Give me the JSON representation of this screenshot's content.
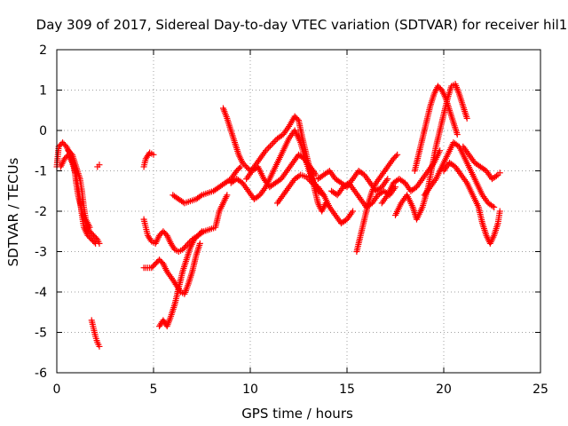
{
  "chart_data": {
    "type": "scatter",
    "title": "Day 309 of 2017, Sidereal Day-to-day VTEC variation (SDTVAR) for receiver hil1",
    "xlabel": "GPS time / hours",
    "ylabel": "SDTVAR / TECUs",
    "xlim": [
      0,
      25
    ],
    "ylim": [
      -6,
      2
    ],
    "xticks": [
      "0",
      "5",
      "10",
      "15",
      "20",
      "25"
    ],
    "yticks": [
      "-6",
      "-5",
      "-4",
      "-3",
      "-2",
      "-1",
      "0",
      "1",
      "2"
    ],
    "grid": true,
    "marker": "+",
    "color": "#ff0000",
    "tracks": [
      [
        [
          0.0,
          -0.9
        ],
        [
          0.1,
          -0.4
        ],
        [
          0.3,
          -0.3
        ],
        [
          0.5,
          -0.4
        ],
        [
          0.7,
          -0.6
        ],
        [
          0.9,
          -0.9
        ],
        [
          1.0,
          -1.3
        ],
        [
          1.1,
          -1.6
        ],
        [
          1.3,
          -2.0
        ],
        [
          1.5,
          -2.3
        ],
        [
          1.7,
          -2.5
        ],
        [
          1.9,
          -2.6
        ],
        [
          2.1,
          -2.7
        ],
        [
          2.2,
          -2.8
        ]
      ],
      [
        [
          0.2,
          -0.9
        ],
        [
          0.4,
          -0.7
        ],
        [
          0.6,
          -0.6
        ],
        [
          0.8,
          -0.8
        ],
        [
          1.0,
          -1.1
        ],
        [
          1.1,
          -1.4
        ],
        [
          1.2,
          -1.7
        ],
        [
          1.3,
          -2.1
        ],
        [
          1.4,
          -2.4
        ],
        [
          1.6,
          -2.6
        ],
        [
          1.8,
          -2.7
        ],
        [
          2.0,
          -2.8
        ]
      ],
      [
        [
          0.6,
          -0.5
        ],
        [
          0.8,
          -0.6
        ],
        [
          1.0,
          -0.9
        ],
        [
          1.2,
          -1.2
        ],
        [
          1.3,
          -1.5
        ],
        [
          1.4,
          -1.9
        ],
        [
          1.5,
          -2.2
        ],
        [
          1.7,
          -2.4
        ]
      ],
      [
        [
          2.1,
          -0.9
        ],
        [
          2.2,
          -0.85
        ]
      ],
      [
        [
          1.8,
          -4.7
        ],
        [
          1.9,
          -4.9
        ],
        [
          2.0,
          -5.1
        ],
        [
          2.1,
          -5.25
        ],
        [
          2.2,
          -5.35
        ]
      ],
      [
        [
          4.5,
          -0.9
        ],
        [
          4.6,
          -0.7
        ],
        [
          4.8,
          -0.55
        ],
        [
          5.0,
          -0.6
        ]
      ],
      [
        [
          4.5,
          -2.2
        ],
        [
          4.6,
          -2.4
        ],
        [
          4.7,
          -2.6
        ],
        [
          4.9,
          -2.75
        ],
        [
          5.1,
          -2.8
        ],
        [
          5.3,
          -2.6
        ],
        [
          5.5,
          -2.5
        ],
        [
          5.7,
          -2.6
        ],
        [
          5.9,
          -2.8
        ],
        [
          6.1,
          -2.95
        ],
        [
          6.3,
          -3.0
        ],
        [
          6.5,
          -2.95
        ],
        [
          6.7,
          -2.85
        ],
        [
          7.0,
          -2.7
        ],
        [
          7.3,
          -2.6
        ],
        [
          7.6,
          -2.5
        ],
        [
          7.9,
          -2.45
        ],
        [
          8.2,
          -2.4
        ],
        [
          8.4,
          -2.0
        ],
        [
          8.6,
          -1.8
        ],
        [
          8.8,
          -1.6
        ]
      ],
      [
        [
          4.5,
          -3.4
        ],
        [
          4.7,
          -3.4
        ],
        [
          4.9,
          -3.4
        ],
        [
          5.1,
          -3.3
        ],
        [
          5.3,
          -3.2
        ],
        [
          5.5,
          -3.3
        ],
        [
          5.7,
          -3.5
        ],
        [
          6.0,
          -3.7
        ],
        [
          6.2,
          -3.85
        ],
        [
          6.4,
          -4.0
        ],
        [
          6.6,
          -4.05
        ],
        [
          6.8,
          -3.8
        ],
        [
          7.0,
          -3.5
        ],
        [
          7.2,
          -3.1
        ],
        [
          7.4,
          -2.8
        ]
      ],
      [
        [
          5.3,
          -4.85
        ],
        [
          5.5,
          -4.7
        ],
        [
          5.7,
          -4.85
        ],
        [
          5.9,
          -4.6
        ],
        [
          6.1,
          -4.3
        ],
        [
          6.3,
          -3.9
        ],
        [
          6.5,
          -3.5
        ],
        [
          6.7,
          -3.2
        ],
        [
          6.9,
          -2.9
        ],
        [
          7.1,
          -2.7
        ],
        [
          7.3,
          -2.6
        ],
        [
          7.5,
          -2.5
        ]
      ],
      [
        [
          6.0,
          -1.6
        ],
        [
          6.3,
          -1.7
        ],
        [
          6.6,
          -1.8
        ],
        [
          6.9,
          -1.75
        ],
        [
          7.2,
          -1.7
        ],
        [
          7.5,
          -1.6
        ],
        [
          7.8,
          -1.55
        ],
        [
          8.1,
          -1.5
        ],
        [
          8.4,
          -1.4
        ],
        [
          8.7,
          -1.3
        ],
        [
          9.0,
          -1.2
        ],
        [
          9.3,
          -1.0
        ],
        [
          9.5,
          -0.9
        ]
      ],
      [
        [
          8.6,
          0.55
        ],
        [
          8.8,
          0.3
        ],
        [
          9.0,
          0.0
        ],
        [
          9.2,
          -0.3
        ],
        [
          9.4,
          -0.6
        ],
        [
          9.6,
          -0.8
        ],
        [
          9.8,
          -0.9
        ],
        [
          10.0,
          -1.0
        ],
        [
          10.2,
          -0.9
        ],
        [
          10.5,
          -0.7
        ],
        [
          10.8,
          -0.5
        ],
        [
          11.1,
          -0.35
        ],
        [
          11.4,
          -0.2
        ],
        [
          11.7,
          -0.1
        ],
        [
          12.0,
          0.1
        ],
        [
          12.3,
          0.35
        ],
        [
          12.5,
          0.25
        ],
        [
          12.7,
          -0.2
        ],
        [
          12.9,
          -0.6
        ],
        [
          13.1,
          -1.0
        ],
        [
          13.3,
          -1.4
        ],
        [
          13.5,
          -1.8
        ],
        [
          13.7,
          -2.0
        ],
        [
          13.9,
          -1.8
        ]
      ],
      [
        [
          9.0,
          -1.3
        ],
        [
          9.3,
          -1.2
        ],
        [
          9.6,
          -1.3
        ],
        [
          9.9,
          -1.5
        ],
        [
          10.2,
          -1.7
        ],
        [
          10.5,
          -1.6
        ],
        [
          10.8,
          -1.4
        ],
        [
          11.1,
          -1.1
        ],
        [
          11.4,
          -0.8
        ],
        [
          11.7,
          -0.5
        ],
        [
          12.0,
          -0.2
        ],
        [
          12.3,
          0.0
        ],
        [
          12.6,
          -0.3
        ],
        [
          12.9,
          -0.8
        ],
        [
          13.2,
          -1.2
        ],
        [
          13.5,
          -1.5
        ],
        [
          13.8,
          -1.6
        ]
      ],
      [
        [
          9.8,
          -1.2
        ],
        [
          10.1,
          -1.0
        ],
        [
          10.4,
          -0.9
        ],
        [
          10.7,
          -1.2
        ],
        [
          11.0,
          -1.4
        ],
        [
          11.3,
          -1.3
        ],
        [
          11.6,
          -1.2
        ],
        [
          11.9,
          -1.0
        ],
        [
          12.2,
          -0.8
        ],
        [
          12.5,
          -0.6
        ],
        [
          12.8,
          -0.7
        ],
        [
          13.1,
          -0.9
        ],
        [
          13.4,
          -1.1
        ]
      ],
      [
        [
          11.4,
          -1.8
        ],
        [
          11.7,
          -1.6
        ],
        [
          12.0,
          -1.4
        ],
        [
          12.3,
          -1.2
        ],
        [
          12.6,
          -1.1
        ],
        [
          12.9,
          -1.15
        ],
        [
          13.2,
          -1.3
        ],
        [
          13.5,
          -1.4
        ],
        [
          13.8,
          -1.6
        ],
        [
          14.1,
          -1.9
        ],
        [
          14.4,
          -2.1
        ],
        [
          14.7,
          -2.3
        ],
        [
          15.0,
          -2.2
        ],
        [
          15.3,
          -2.0
        ]
      ],
      [
        [
          13.5,
          -1.2
        ],
        [
          13.8,
          -1.1
        ],
        [
          14.1,
          -1.0
        ],
        [
          14.4,
          -1.2
        ],
        [
          14.7,
          -1.3
        ],
        [
          15.0,
          -1.4
        ],
        [
          15.3,
          -1.2
        ],
        [
          15.6,
          -1.0
        ],
        [
          15.9,
          -1.1
        ],
        [
          16.2,
          -1.3
        ],
        [
          16.5,
          -1.5
        ],
        [
          16.8,
          -1.4
        ],
        [
          17.1,
          -1.2
        ]
      ],
      [
        [
          14.2,
          -1.5
        ],
        [
          14.5,
          -1.6
        ],
        [
          14.8,
          -1.4
        ],
        [
          15.1,
          -1.3
        ],
        [
          15.4,
          -1.5
        ],
        [
          15.7,
          -1.7
        ],
        [
          16.0,
          -1.9
        ],
        [
          16.3,
          -1.8
        ],
        [
          16.6,
          -1.6
        ],
        [
          16.9,
          -1.5
        ],
        [
          17.2,
          -1.6
        ],
        [
          17.5,
          -1.4
        ]
      ],
      [
        [
          15.5,
          -3.0
        ],
        [
          15.7,
          -2.6
        ],
        [
          15.9,
          -2.2
        ],
        [
          16.1,
          -1.8
        ],
        [
          16.3,
          -1.5
        ],
        [
          16.5,
          -1.3
        ],
        [
          16.8,
          -1.1
        ],
        [
          17.1,
          -0.9
        ],
        [
          17.4,
          -0.7
        ],
        [
          17.6,
          -0.6
        ]
      ],
      [
        [
          16.8,
          -1.8
        ],
        [
          17.1,
          -1.6
        ],
        [
          17.4,
          -1.3
        ],
        [
          17.7,
          -1.2
        ],
        [
          18.0,
          -1.3
        ],
        [
          18.3,
          -1.5
        ],
        [
          18.6,
          -1.4
        ],
        [
          18.9,
          -1.2
        ],
        [
          19.2,
          -1.0
        ],
        [
          19.5,
          -0.8
        ],
        [
          19.8,
          -0.5
        ]
      ],
      [
        [
          17.5,
          -2.1
        ],
        [
          17.8,
          -1.8
        ],
        [
          18.1,
          -1.6
        ],
        [
          18.4,
          -1.9
        ],
        [
          18.6,
          -2.2
        ],
        [
          18.9,
          -1.9
        ],
        [
          19.2,
          -1.4
        ],
        [
          19.4,
          -0.9
        ],
        [
          19.6,
          -0.4
        ],
        [
          19.8,
          0.0
        ],
        [
          20.0,
          0.4
        ],
        [
          20.2,
          0.8
        ],
        [
          20.4,
          1.1
        ],
        [
          20.6,
          1.15
        ],
        [
          20.8,
          0.9
        ],
        [
          21.0,
          0.6
        ],
        [
          21.2,
          0.3
        ]
      ],
      [
        [
          18.5,
          -1.0
        ],
        [
          18.7,
          -0.6
        ],
        [
          18.9,
          -0.2
        ],
        [
          19.1,
          0.2
        ],
        [
          19.3,
          0.6
        ],
        [
          19.5,
          0.9
        ],
        [
          19.7,
          1.1
        ],
        [
          19.9,
          1.0
        ],
        [
          20.1,
          0.8
        ],
        [
          20.3,
          0.5
        ],
        [
          20.5,
          0.2
        ],
        [
          20.7,
          -0.1
        ]
      ],
      [
        [
          19.0,
          -1.6
        ],
        [
          19.3,
          -1.4
        ],
        [
          19.6,
          -1.2
        ],
        [
          19.9,
          -0.9
        ],
        [
          20.2,
          -0.6
        ],
        [
          20.5,
          -0.3
        ],
        [
          20.8,
          -0.4
        ],
        [
          21.1,
          -0.7
        ],
        [
          21.4,
          -1.0
        ],
        [
          21.7,
          -1.3
        ],
        [
          22.0,
          -1.6
        ],
        [
          22.3,
          -1.8
        ],
        [
          22.6,
          -1.9
        ]
      ],
      [
        [
          20.0,
          -1.0
        ],
        [
          20.3,
          -0.8
        ],
        [
          20.6,
          -0.9
        ],
        [
          20.9,
          -1.1
        ],
        [
          21.2,
          -1.3
        ],
        [
          21.5,
          -1.6
        ],
        [
          21.8,
          -1.9
        ],
        [
          22.0,
          -2.3
        ],
        [
          22.2,
          -2.6
        ],
        [
          22.4,
          -2.8
        ],
        [
          22.6,
          -2.6
        ],
        [
          22.8,
          -2.3
        ],
        [
          22.9,
          -2.0
        ]
      ],
      [
        [
          21.0,
          -0.4
        ],
        [
          21.3,
          -0.6
        ],
        [
          21.6,
          -0.8
        ],
        [
          21.9,
          -0.9
        ],
        [
          22.2,
          -1.0
        ],
        [
          22.5,
          -1.2
        ],
        [
          22.8,
          -1.1
        ],
        [
          22.9,
          -1.05
        ]
      ]
    ]
  }
}
